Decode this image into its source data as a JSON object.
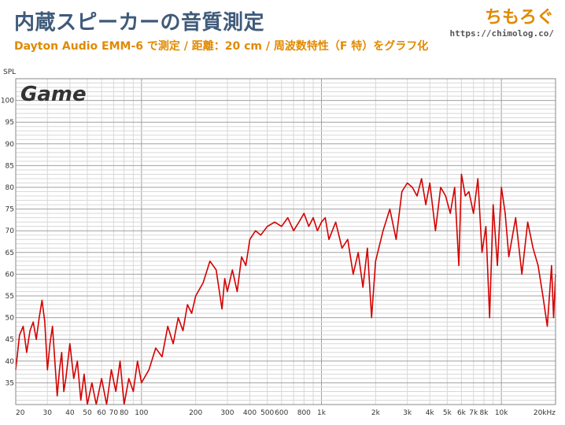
{
  "header": {
    "title": "内蔵スピーカーの音質測定",
    "subtitle": "Dayton Audio EMM-6 で測定 / 距離：20 cm / 周波数特性（F 特）をグラフ化",
    "brand": "ちもろぐ",
    "brand_url": "https://chimolog.co/"
  },
  "chart_data": {
    "type": "line",
    "title": "",
    "panel_label": "Game",
    "xlabel": "",
    "ylabel": "SPL",
    "x_scale": "log",
    "xlim": [
      20,
      20000
    ],
    "ylim": [
      30,
      105
    ],
    "x_ticks": [
      {
        "value": 20,
        "label": "20"
      },
      {
        "value": 30,
        "label": "30"
      },
      {
        "value": 40,
        "label": "40"
      },
      {
        "value": 50,
        "label": "50"
      },
      {
        "value": 60,
        "label": "60"
      },
      {
        "value": 70,
        "label": "70"
      },
      {
        "value": 80,
        "label": "80"
      },
      {
        "value": 100,
        "label": "100"
      },
      {
        "value": 200,
        "label": "200"
      },
      {
        "value": 300,
        "label": "300"
      },
      {
        "value": 400,
        "label": "400"
      },
      {
        "value": 500,
        "label": "500"
      },
      {
        "value": 600,
        "label": "600"
      },
      {
        "value": 800,
        "label": "800"
      },
      {
        "value": 1000,
        "label": "1k"
      },
      {
        "value": 2000,
        "label": "2k"
      },
      {
        "value": 3000,
        "label": "3k"
      },
      {
        "value": 4000,
        "label": "4k"
      },
      {
        "value": 5000,
        "label": "5k"
      },
      {
        "value": 6000,
        "label": "6k"
      },
      {
        "value": 7000,
        "label": "7k"
      },
      {
        "value": 8000,
        "label": "8k"
      },
      {
        "value": 10000,
        "label": "10k"
      },
      {
        "value": 20000,
        "label": "20kHz"
      }
    ],
    "y_ticks": [
      35,
      40,
      45,
      50,
      55,
      60,
      65,
      70,
      75,
      80,
      85,
      90,
      95,
      100
    ],
    "grid": true,
    "series": [
      {
        "color": "#d40000",
        "x": [
          20,
          21,
          22,
          23,
          24,
          25,
          26,
          27,
          28,
          29,
          30,
          31,
          32,
          33,
          34,
          35,
          36,
          37,
          38,
          40,
          42,
          44,
          46,
          48,
          50,
          53,
          56,
          60,
          64,
          68,
          72,
          76,
          80,
          85,
          90,
          95,
          100,
          110,
          120,
          130,
          140,
          150,
          160,
          170,
          180,
          190,
          200,
          220,
          240,
          260,
          280,
          290,
          300,
          320,
          340,
          360,
          380,
          400,
          430,
          460,
          500,
          550,
          600,
          650,
          700,
          750,
          800,
          850,
          900,
          950,
          1000,
          1050,
          1100,
          1200,
          1300,
          1400,
          1500,
          1600,
          1700,
          1800,
          1900,
          2000,
          2200,
          2400,
          2600,
          2800,
          3000,
          3200,
          3400,
          3600,
          3800,
          4000,
          4300,
          4600,
          4900,
          5200,
          5500,
          5800,
          6000,
          6300,
          6600,
          7000,
          7400,
          7800,
          8200,
          8600,
          9000,
          9500,
          10000,
          10500,
          11000,
          12000,
          13000,
          14000,
          15000,
          16000,
          17000,
          18000,
          19000,
          19500,
          20000
        ],
        "y": [
          38,
          46,
          48,
          42,
          47,
          49,
          45,
          50,
          54,
          49,
          38,
          44,
          48,
          40,
          32,
          38,
          42,
          33,
          36,
          44,
          36,
          40,
          31,
          37,
          30,
          35,
          28,
          36,
          30,
          38,
          33,
          40,
          30,
          36,
          33,
          40,
          35,
          38,
          43,
          41,
          48,
          44,
          50,
          47,
          53,
          51,
          55,
          58,
          63,
          61,
          52,
          59,
          56,
          61,
          56,
          64,
          62,
          68,
          70,
          69,
          71,
          72,
          71,
          73,
          70,
          72,
          74,
          71,
          73,
          70,
          72,
          73,
          68,
          72,
          66,
          68,
          60,
          65,
          57,
          66,
          50,
          63,
          70,
          75,
          68,
          79,
          81,
          80,
          78,
          82,
          76,
          81,
          70,
          80,
          78,
          74,
          80,
          62,
          83,
          78,
          79,
          74,
          82,
          65,
          71,
          50,
          76,
          62,
          80,
          74,
          64,
          73,
          60,
          72,
          66,
          62,
          55,
          48,
          62,
          50,
          60
        ]
      }
    ]
  }
}
